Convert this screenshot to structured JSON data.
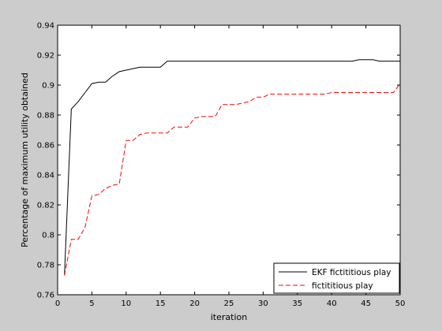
{
  "chart_data": {
    "type": "line",
    "title": "",
    "xlabel": "iteration",
    "ylabel": "Percentage of maximum utility obtained",
    "xlim": [
      0,
      50
    ],
    "ylim": [
      0.76,
      0.94
    ],
    "xticks": [
      0,
      5,
      10,
      15,
      20,
      25,
      30,
      35,
      40,
      45,
      50
    ],
    "yticks": [
      0.76,
      0.78,
      0.8,
      0.82,
      0.84,
      0.86,
      0.88,
      0.9,
      0.92,
      0.94
    ],
    "xtick_labels": [
      "0",
      "5",
      "10",
      "15",
      "20",
      "25",
      "30",
      "35",
      "40",
      "45",
      "50"
    ],
    "ytick_labels": [
      "0.76",
      "0.78",
      "0.8",
      "0.82",
      "0.84",
      "0.86",
      "0.88",
      "0.9",
      "0.92",
      "0.94"
    ],
    "grid": false,
    "legend_position": "bottom-right",
    "series": [
      {
        "name": "EKF fictititious play",
        "color": "#000000",
        "dash": "solid",
        "x": [
          1,
          2,
          3,
          4,
          5,
          6,
          7,
          8,
          9,
          10,
          11,
          12,
          13,
          14,
          15,
          16,
          17,
          18,
          19,
          20,
          21,
          22,
          23,
          24,
          25,
          26,
          27,
          28,
          29,
          30,
          31,
          32,
          33,
          34,
          35,
          36,
          37,
          38,
          39,
          40,
          41,
          42,
          43,
          44,
          45,
          46,
          47,
          48,
          49,
          50
        ],
        "y": [
          0.773,
          0.884,
          0.889,
          0.895,
          0.901,
          0.902,
          0.902,
          0.906,
          0.909,
          0.91,
          0.911,
          0.912,
          0.912,
          0.912,
          0.912,
          0.916,
          0.916,
          0.916,
          0.916,
          0.916,
          0.916,
          0.916,
          0.916,
          0.916,
          0.916,
          0.916,
          0.916,
          0.916,
          0.916,
          0.916,
          0.916,
          0.916,
          0.916,
          0.916,
          0.916,
          0.916,
          0.916,
          0.916,
          0.916,
          0.916,
          0.916,
          0.916,
          0.916,
          0.917,
          0.917,
          0.917,
          0.916,
          0.916,
          0.916,
          0.916
        ]
      },
      {
        "name": "fictititious play",
        "color": "#ff0000",
        "dash": "dashed",
        "x": [
          1,
          2,
          3,
          4,
          5,
          6,
          7,
          8,
          9,
          10,
          11,
          12,
          13,
          14,
          15,
          16,
          17,
          18,
          19,
          20,
          21,
          22,
          23,
          24,
          25,
          26,
          27,
          28,
          29,
          30,
          31,
          32,
          33,
          34,
          35,
          36,
          37,
          38,
          39,
          40,
          41,
          42,
          43,
          44,
          45,
          46,
          47,
          48,
          49,
          50
        ],
        "y": [
          0.773,
          0.797,
          0.797,
          0.805,
          0.826,
          0.827,
          0.831,
          0.833,
          0.834,
          0.863,
          0.863,
          0.867,
          0.868,
          0.868,
          0.868,
          0.868,
          0.872,
          0.872,
          0.872,
          0.878,
          0.879,
          0.879,
          0.879,
          0.887,
          0.887,
          0.887,
          0.888,
          0.889,
          0.892,
          0.892,
          0.894,
          0.894,
          0.894,
          0.894,
          0.894,
          0.894,
          0.894,
          0.894,
          0.894,
          0.895,
          0.895,
          0.895,
          0.895,
          0.895,
          0.895,
          0.895,
          0.895,
          0.895,
          0.895,
          0.901
        ]
      }
    ]
  }
}
